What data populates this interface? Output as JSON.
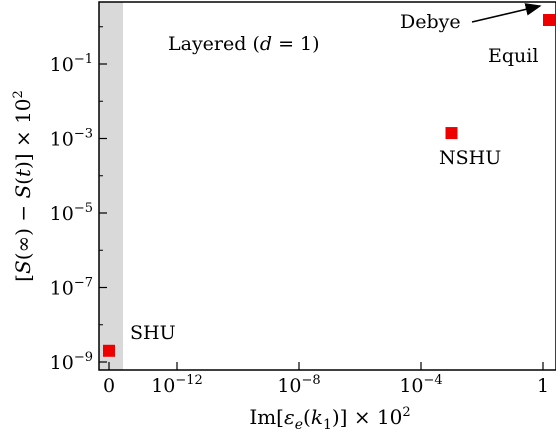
{
  "chart_data": {
    "type": "scatter",
    "title": "",
    "xlabel": "Im[εe(k1)] × 10^2",
    "ylabel": "[S(∞) − S(t)] × 10^2",
    "x_scale": "log",
    "y_scale": "log",
    "x_ticks": [
      {
        "value": 0,
        "label": "0"
      },
      {
        "value": 1e-12,
        "label": "10^-12"
      },
      {
        "value": 1e-08,
        "label": "10^-8"
      },
      {
        "value": 0.0001,
        "label": "10^-4"
      },
      {
        "value": 1,
        "label": "1"
      }
    ],
    "y_ticks": [
      {
        "value": 1e-09,
        "label": "10^-9"
      },
      {
        "value": 1e-07,
        "label": "10^-7"
      },
      {
        "value": 1e-05,
        "label": "10^-5"
      },
      {
        "value": 0.001,
        "label": "10^-3"
      },
      {
        "value": 0.1,
        "label": "10^-1"
      }
    ],
    "ylim": [
      1e-09,
      4
    ],
    "grid": false,
    "legend": "none",
    "shaded_region": {
      "description": "x = 0 region",
      "color": "#d9d9d9"
    },
    "marker_color": "#ee0000",
    "points": [
      {
        "label": "SHU",
        "x": 0,
        "y": 2e-09
      },
      {
        "label": "NSHU",
        "x": 0.001,
        "y": 0.0014
      },
      {
        "label": "Equil",
        "x": 2,
        "y": 1.7
      },
      {
        "label": "Debye",
        "x": 2.3,
        "y": 2.6
      }
    ],
    "annotations": {
      "panel": "Layered (d = 1)",
      "debye": "Debye",
      "equil": "Equil",
      "nshu": "NSHU",
      "shu": "SHU"
    }
  }
}
